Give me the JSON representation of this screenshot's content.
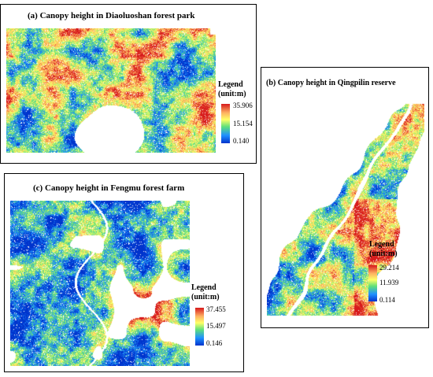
{
  "panels": {
    "a": {
      "title": "(a) Canopy height in Diaoluoshan forest park",
      "legend_title_1": "Legend",
      "legend_title_2": "(unit:m)",
      "max": "35.906",
      "mid": "15.154",
      "min": "0.140"
    },
    "b": {
      "title": "(b) Canopy height in Qingpilin reserve",
      "legend_title_1": "Legend",
      "legend_title_2": "(unit:m)",
      "max": "29.214",
      "mid": "11.939",
      "min": "0.114"
    },
    "c": {
      "title": "(c) Canopy height in Fengmu forest farm",
      "legend_title_1": "Legend",
      "legend_title_2": "(unit:m)",
      "max": "37.455",
      "mid": "15.497",
      "min": "0.146"
    }
  },
  "colors": {
    "high": "#d7191c",
    "upper": "#fdae61",
    "middle": "#ffff66",
    "lower": "#5fe07a",
    "low": "#1e90ff",
    "lowest": "#0033cc"
  }
}
